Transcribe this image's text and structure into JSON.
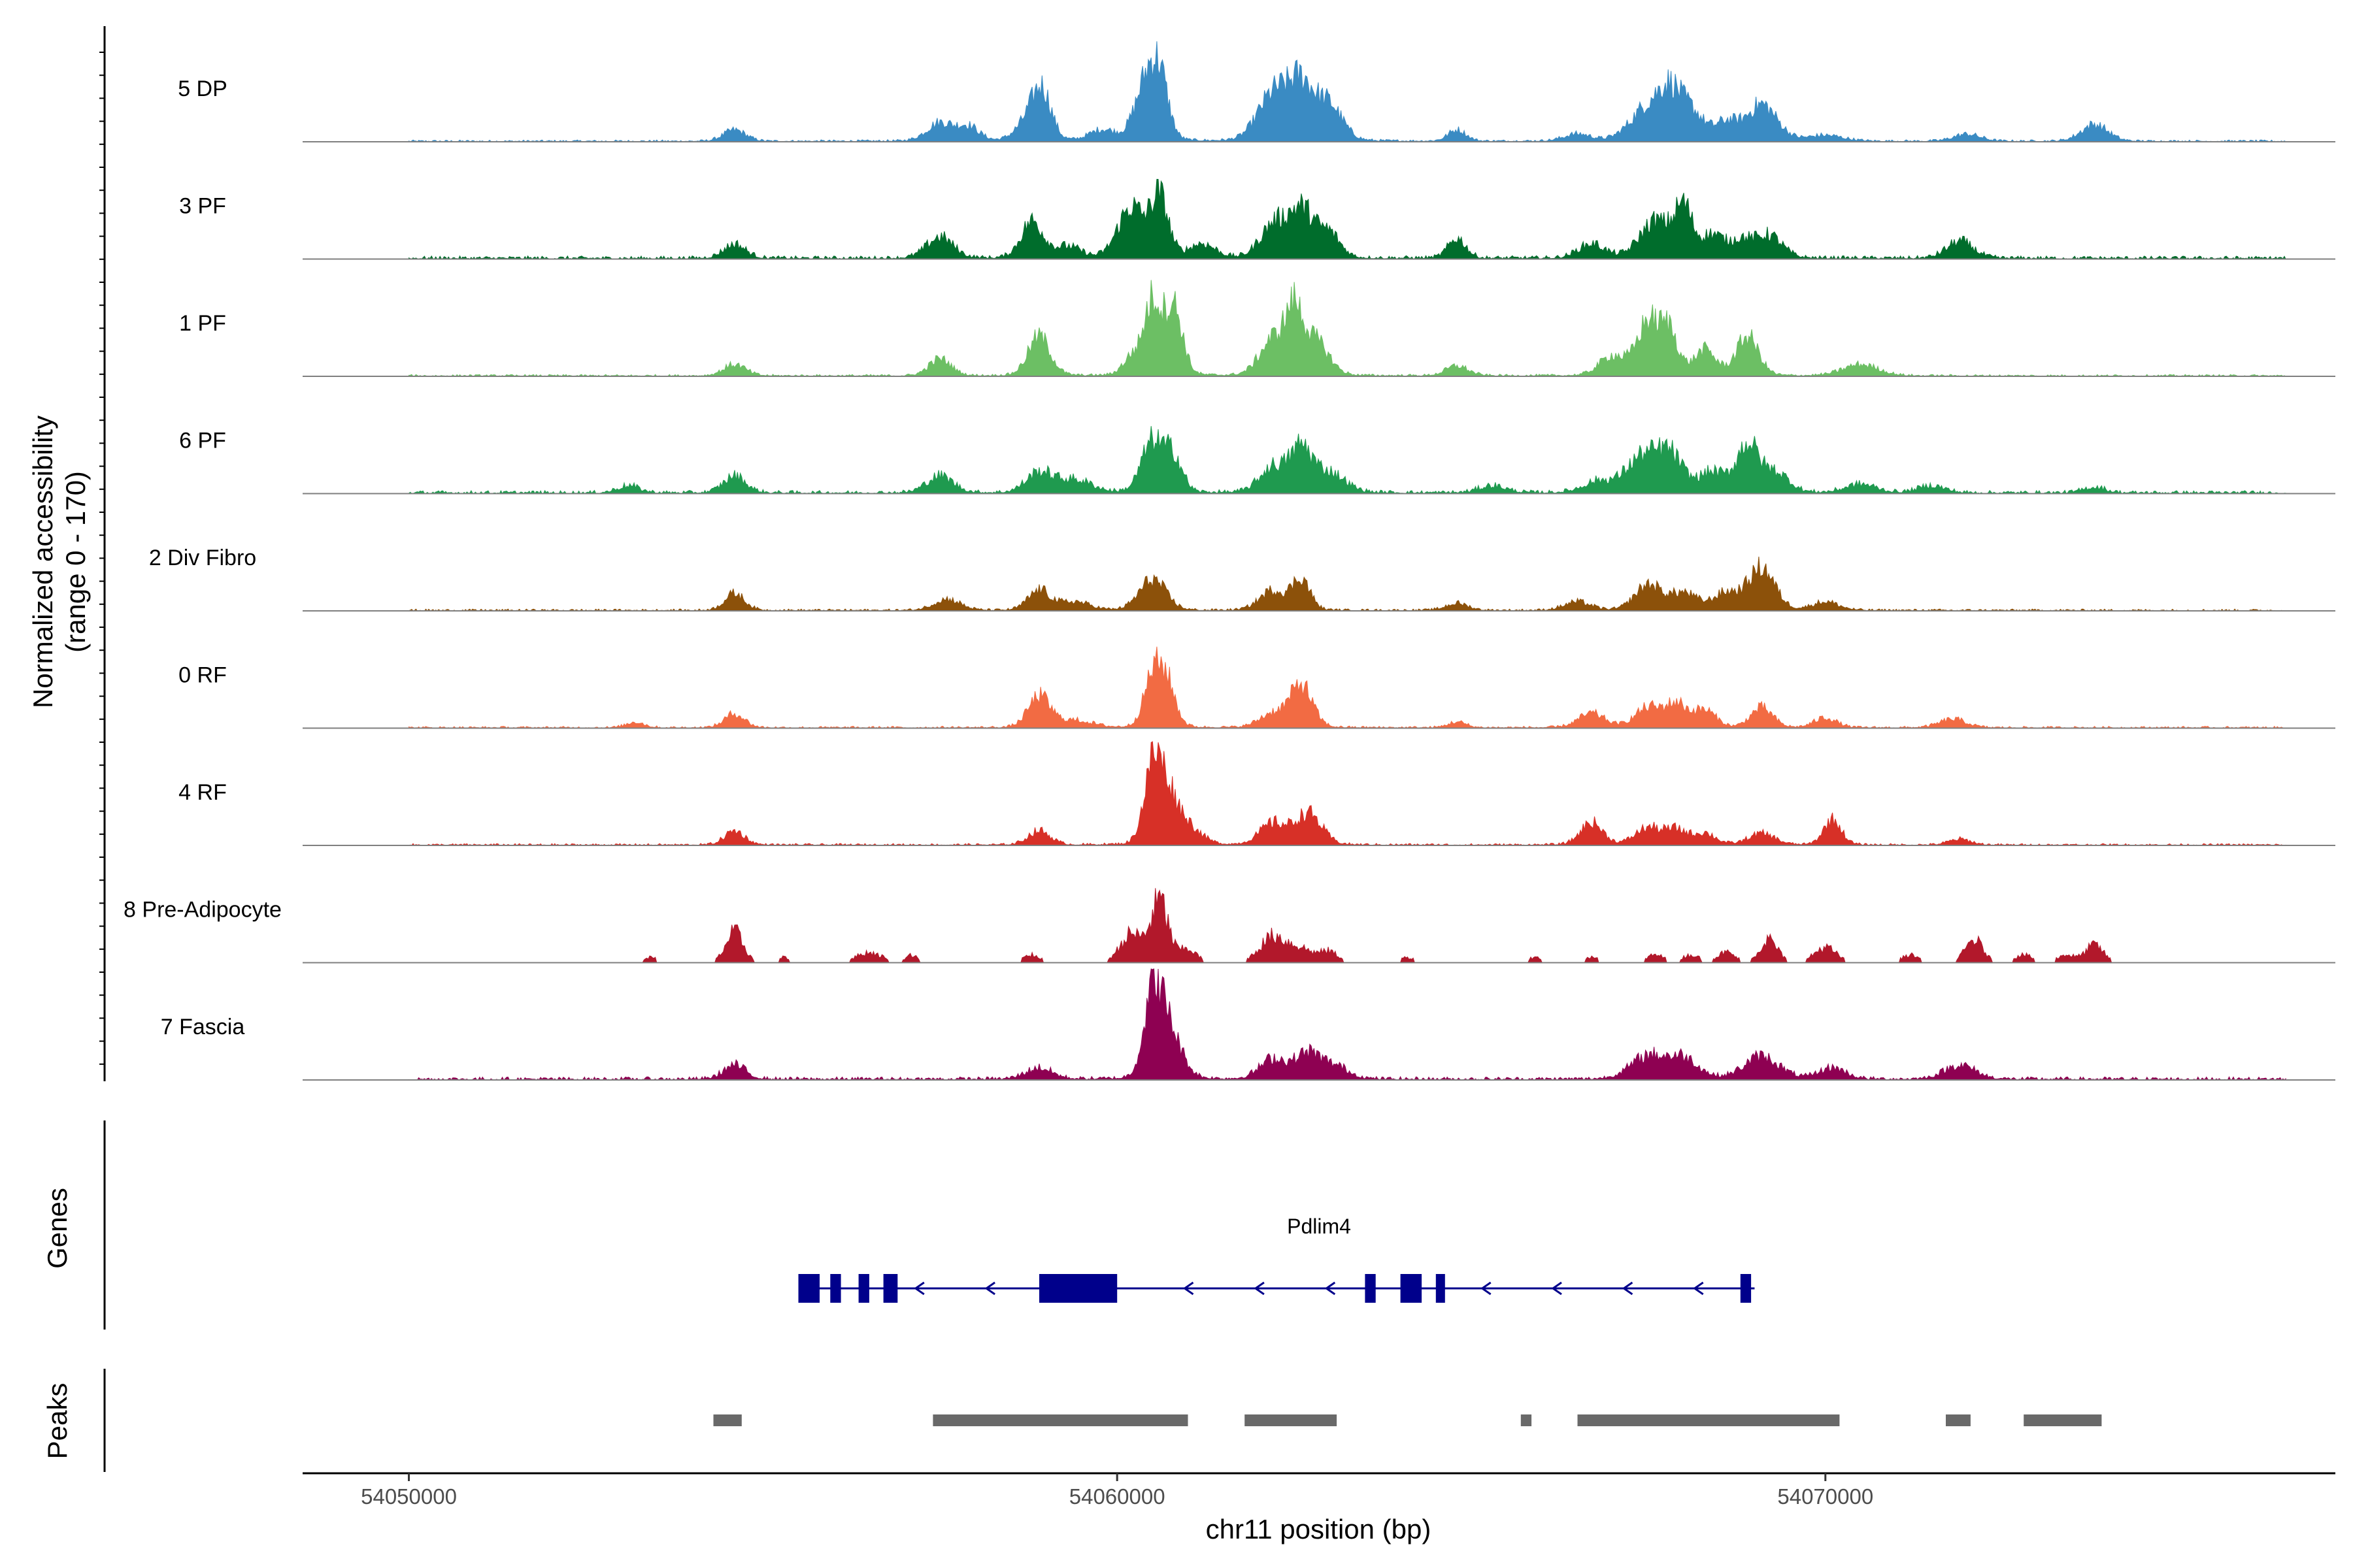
{
  "chart_data": {
    "type": "area",
    "chromosome": "chr11",
    "xlabel": "chr11 position (bp)",
    "ylabel_line1": "Normalized accessibility",
    "ylabel_line2": "(range 0 - 170)",
    "ylim": [
      0,
      170
    ],
    "xlim": [
      54048500,
      54077200
    ],
    "x_ticks": [
      54050000,
      54060000,
      54070000
    ],
    "x_tick_labels": [
      "54050000",
      "54060000",
      "54070000"
    ],
    "data_start": 54050000,
    "data_end": 54076500,
    "tracks": [
      {
        "name": "5 DP",
        "color": "#3a8bc3",
        "peaks": [
          [
            54054600,
            8,
            50
          ],
          [
            54057500,
            13,
            60
          ],
          [
            54057900,
            10,
            50
          ],
          [
            54058800,
            18,
            60
          ],
          [
            54058950,
            26,
            40
          ],
          [
            54059800,
            8,
            60
          ],
          [
            54060400,
            38,
            50
          ],
          [
            54060600,
            40,
            40
          ],
          [
            54062200,
            32,
            70
          ],
          [
            54062600,
            38,
            60
          ],
          [
            54063000,
            24,
            60
          ],
          [
            54064800,
            8,
            40
          ],
          [
            54066500,
            5,
            60
          ],
          [
            54067500,
            24,
            80
          ],
          [
            54067800,
            25,
            50
          ],
          [
            54068100,
            20,
            60
          ],
          [
            54068600,
            12,
            50
          ],
          [
            54069100,
            26,
            70
          ],
          [
            54070000,
            4,
            80
          ],
          [
            54072000,
            5,
            60
          ],
          [
            54073800,
            12,
            60
          ]
        ],
        "base": 1.5
      },
      {
        "name": "3 PF",
        "color": "#006d2c",
        "peaks": [
          [
            54054600,
            10,
            50
          ],
          [
            54057500,
            15,
            60
          ],
          [
            54058800,
            26,
            50
          ],
          [
            54059300,
            8,
            60
          ],
          [
            54060200,
            36,
            60
          ],
          [
            54060600,
            42,
            40
          ],
          [
            54061200,
            10,
            60
          ],
          [
            54062200,
            22,
            60
          ],
          [
            54062600,
            34,
            60
          ],
          [
            54063000,
            16,
            50
          ],
          [
            54064800,
            14,
            40
          ],
          [
            54066700,
            10,
            60
          ],
          [
            54067600,
            26,
            70
          ],
          [
            54068000,
            34,
            40
          ],
          [
            54068400,
            16,
            50
          ],
          [
            54068800,
            12,
            50
          ],
          [
            54069200,
            16,
            60
          ],
          [
            54071900,
            12,
            60
          ]
        ],
        "base": 2.5
      },
      {
        "name": "1 PF",
        "color": "#6cbf64",
        "peaks": [
          [
            54054600,
            8,
            50
          ],
          [
            54057500,
            12,
            50
          ],
          [
            54058900,
            28,
            50
          ],
          [
            54060200,
            12,
            40
          ],
          [
            54060500,
            52,
            40
          ],
          [
            54060800,
            48,
            40
          ],
          [
            54062200,
            25,
            60
          ],
          [
            54062500,
            40,
            40
          ],
          [
            54062800,
            24,
            60
          ],
          [
            54064800,
            7,
            50
          ],
          [
            54067000,
            14,
            60
          ],
          [
            54067500,
            38,
            50
          ],
          [
            54067800,
            30,
            40
          ],
          [
            54068300,
            18,
            50
          ],
          [
            54068900,
            28,
            50
          ],
          [
            54070500,
            8,
            80
          ]
        ],
        "base": 1.5
      },
      {
        "name": "6 PF",
        "color": "#1f9a4f",
        "peaks": [
          [
            54053100,
            5,
            50
          ],
          [
            54054600,
            12,
            50
          ],
          [
            54057500,
            12,
            60
          ],
          [
            54058900,
            14,
            60
          ],
          [
            54059400,
            9,
            80
          ],
          [
            54060500,
            36,
            50
          ],
          [
            54060800,
            24,
            40
          ],
          [
            54062200,
            18,
            60
          ],
          [
            54062600,
            30,
            50
          ],
          [
            54063000,
            14,
            70
          ],
          [
            54065300,
            5,
            60
          ],
          [
            54066800,
            8,
            70
          ],
          [
            54067400,
            24,
            70
          ],
          [
            54067800,
            26,
            60
          ],
          [
            54068400,
            14,
            60
          ],
          [
            54068900,
            34,
            50
          ],
          [
            54069300,
            14,
            60
          ],
          [
            54070500,
            6,
            70
          ],
          [
            54071500,
            5,
            60
          ],
          [
            54073800,
            4,
            50
          ]
        ],
        "base": 2.5
      },
      {
        "name": "2 Div Fibro",
        "color": "#8c510a",
        "peaks": [
          [
            54054600,
            12,
            45
          ],
          [
            54057600,
            8,
            60
          ],
          [
            54058900,
            14,
            50
          ],
          [
            54059400,
            6,
            70
          ],
          [
            54060500,
            22,
            60
          ],
          [
            54062200,
            14,
            60
          ],
          [
            54062600,
            22,
            40
          ],
          [
            54064800,
            5,
            50
          ],
          [
            54066500,
            6,
            60
          ],
          [
            54067500,
            18,
            60
          ],
          [
            54068000,
            12,
            60
          ],
          [
            54068600,
            12,
            60
          ],
          [
            54069100,
            30,
            60
          ],
          [
            54070000,
            6,
            60
          ]
        ],
        "base": 1.5
      },
      {
        "name": "0 RF",
        "color": "#f26b43",
        "peaks": [
          [
            54054600,
            10,
            45
          ],
          [
            54053200,
            4,
            40
          ],
          [
            54058900,
            22,
            50
          ],
          [
            54059400,
            5,
            80
          ],
          [
            54060500,
            34,
            40
          ],
          [
            54060700,
            30,
            40
          ],
          [
            54062600,
            30,
            50
          ],
          [
            54062200,
            10,
            60
          ],
          [
            54064800,
            4,
            40
          ],
          [
            54066700,
            10,
            60
          ],
          [
            54067500,
            14,
            60
          ],
          [
            54067900,
            16,
            50
          ],
          [
            54068300,
            12,
            50
          ],
          [
            54069100,
            14,
            50
          ],
          [
            54070000,
            7,
            50
          ],
          [
            54071800,
            6,
            60
          ]
        ],
        "base": 1.5
      },
      {
        "name": "4 RF",
        "color": "#d73027",
        "peaks": [
          [
            54054600,
            10,
            45
          ],
          [
            54058900,
            10,
            50
          ],
          [
            54060500,
            48,
            40
          ],
          [
            54060700,
            34,
            50
          ],
          [
            54061000,
            12,
            60
          ],
          [
            54062200,
            15,
            60
          ],
          [
            54062700,
            22,
            60
          ],
          [
            54066700,
            16,
            50
          ],
          [
            54067500,
            12,
            60
          ],
          [
            54067900,
            10,
            50
          ],
          [
            54068300,
            8,
            50
          ],
          [
            54069100,
            8,
            60
          ],
          [
            54070100,
            18,
            40
          ],
          [
            54071900,
            4,
            50
          ]
        ],
        "base": 1.5
      },
      {
        "name": "8 Pre-Adipocyte",
        "color": "#b2182b",
        "peaks": [
          [
            54053400,
            4,
            40
          ],
          [
            54054600,
            24,
            40
          ],
          [
            54055300,
            4,
            30
          ],
          [
            54056500,
            8,
            60
          ],
          [
            54057100,
            6,
            30
          ],
          [
            54058800,
            6,
            40
          ],
          [
            54060200,
            22,
            50
          ],
          [
            54060600,
            48,
            40
          ],
          [
            54061000,
            10,
            40
          ],
          [
            54062200,
            20,
            60
          ],
          [
            54062600,
            10,
            60
          ],
          [
            54063000,
            8,
            40
          ],
          [
            54064100,
            4,
            40
          ],
          [
            54065900,
            4,
            40
          ],
          [
            54066700,
            4,
            40
          ],
          [
            54067600,
            6,
            40
          ],
          [
            54068100,
            6,
            40
          ],
          [
            54068600,
            8,
            40
          ],
          [
            54069200,
            18,
            40
          ],
          [
            54070000,
            12,
            50
          ],
          [
            54071200,
            6,
            40
          ],
          [
            54072100,
            18,
            40
          ],
          [
            54072800,
            6,
            40
          ],
          [
            54073400,
            6,
            40
          ],
          [
            54073800,
            14,
            40
          ]
        ],
        "base": 0,
        "sparse": true
      },
      {
        "name": "7 Fascia",
        "color": "#8e0152",
        "peaks": [
          [
            54054600,
            10,
            50
          ],
          [
            54058900,
            8,
            60
          ],
          [
            54060500,
            48,
            40
          ],
          [
            54060700,
            38,
            60
          ],
          [
            54062200,
            14,
            60
          ],
          [
            54062700,
            18,
            60
          ],
          [
            54063100,
            8,
            60
          ],
          [
            54067500,
            16,
            80
          ],
          [
            54068000,
            14,
            70
          ],
          [
            54069100,
            16,
            80
          ],
          [
            54070100,
            8,
            60
          ],
          [
            54071900,
            10,
            70
          ]
        ],
        "base": 2.5
      }
    ],
    "genes_label": "Genes",
    "gene": {
      "name": "Pdlim4",
      "strand": "-",
      "start": 54055500,
      "end": 54069000,
      "exons": [
        [
          54055500,
          54055800
        ],
        [
          54055950,
          54056100
        ],
        [
          54056350,
          54056500
        ],
        [
          54056700,
          54056900
        ],
        [
          54058900,
          54060000
        ],
        [
          54063500,
          54063650
        ],
        [
          54064000,
          54064300
        ],
        [
          54064500,
          54064600
        ],
        [
          54068800,
          54068950
        ]
      ],
      "arrows": [
        54057200,
        54058200,
        54061000,
        54062000,
        54063000,
        54065200,
        54066200,
        54067200,
        54068200
      ],
      "color": "#00008b"
    },
    "peaks_label": "Peaks",
    "peaks_color": "#696969",
    "peak_regions": [
      [
        54054300,
        54054700
      ],
      [
        54057400,
        54061000
      ],
      [
        54061800,
        54063100
      ],
      [
        54065700,
        54065850
      ],
      [
        54066500,
        54070200
      ],
      [
        54071700,
        54072050
      ],
      [
        54072800,
        54073900
      ]
    ]
  }
}
